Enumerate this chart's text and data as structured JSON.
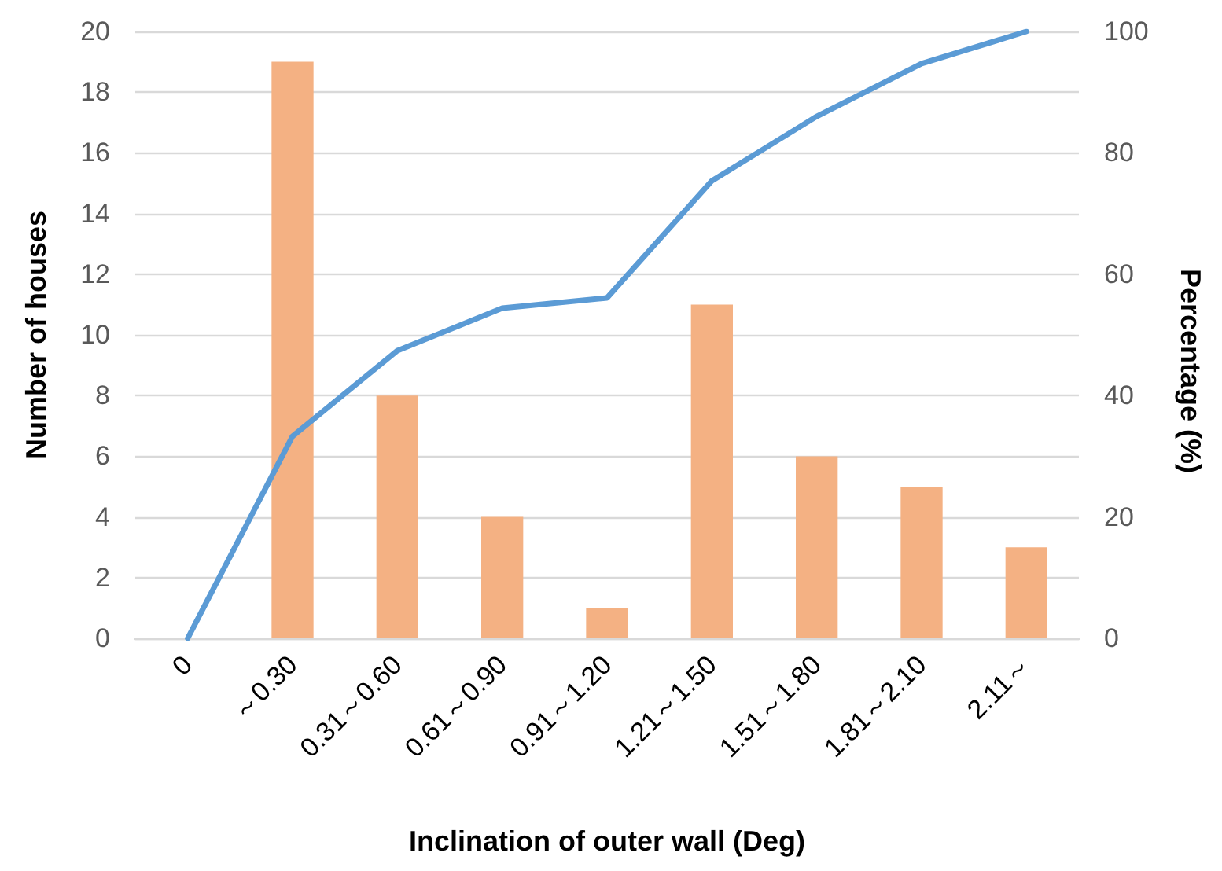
{
  "chart_data": {
    "type": "bar",
    "xlabel": "Inclination of outer wall (Deg)",
    "ylabel": "Number of houses",
    "y2label": "Percentage (%)",
    "categories": [
      "0",
      "～0.30",
      "0.31～0.60",
      "0.61～0.90",
      "0.91～1.20",
      "1.21～1.50",
      "1.51～1.80",
      "1.81～2.10",
      "2.11～"
    ],
    "series": [
      {
        "color": "#f4b183",
        "values": [
          0,
          19,
          8,
          4,
          1,
          11,
          6,
          5,
          3
        ]
      },
      {
        "type": "line",
        "axis": "y2",
        "color": "#5b9bd5",
        "values": [
          0,
          33.3,
          47.4,
          54.4,
          56.1,
          75.4,
          86,
          94.7,
          100
        ]
      }
    ],
    "ylim": [
      0,
      20
    ],
    "yticks": [
      0,
      2,
      4,
      6,
      8,
      10,
      12,
      14,
      16,
      18,
      20
    ],
    "y2lim": [
      0,
      100
    ],
    "y2ticks": [
      0,
      20,
      40,
      60,
      80,
      100
    ],
    "grid": "y",
    "marker": "none",
    "line_style": "solid"
  }
}
